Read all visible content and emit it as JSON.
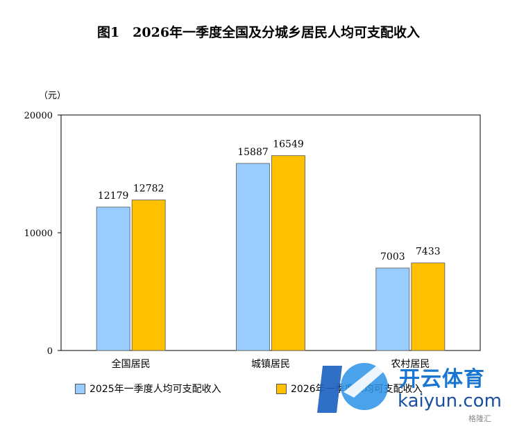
{
  "title": "图1　2026年一季度全国及分城乡居民人均可支配收入",
  "unit_label": "（元）",
  "chart_data": {
    "type": "bar",
    "categories": [
      "全国居民",
      "城镇居民",
      "农村居民"
    ],
    "series": [
      {
        "name": "2025年一季度人均可支配收入",
        "values": [
          12179,
          15887,
          7003
        ],
        "color": "#99CCFF"
      },
      {
        "name": "2026年一季度人均可支配收入",
        "values": [
          12782,
          16549,
          7433
        ],
        "color": "#FFC000"
      }
    ],
    "ylim": [
      0,
      20000
    ],
    "yticks": [
      0,
      10000,
      20000
    ],
    "ytick_labels": [
      "0",
      "10000",
      "20000"
    ],
    "legend_position": "bottom",
    "grid": false
  },
  "watermark": {
    "brand_cn": "开云体育",
    "brand_en": "kaiyun.com",
    "tag": "格隆汇",
    "colors": {
      "primary": "#1876d2",
      "secondary": "#1a4fa0"
    }
  }
}
